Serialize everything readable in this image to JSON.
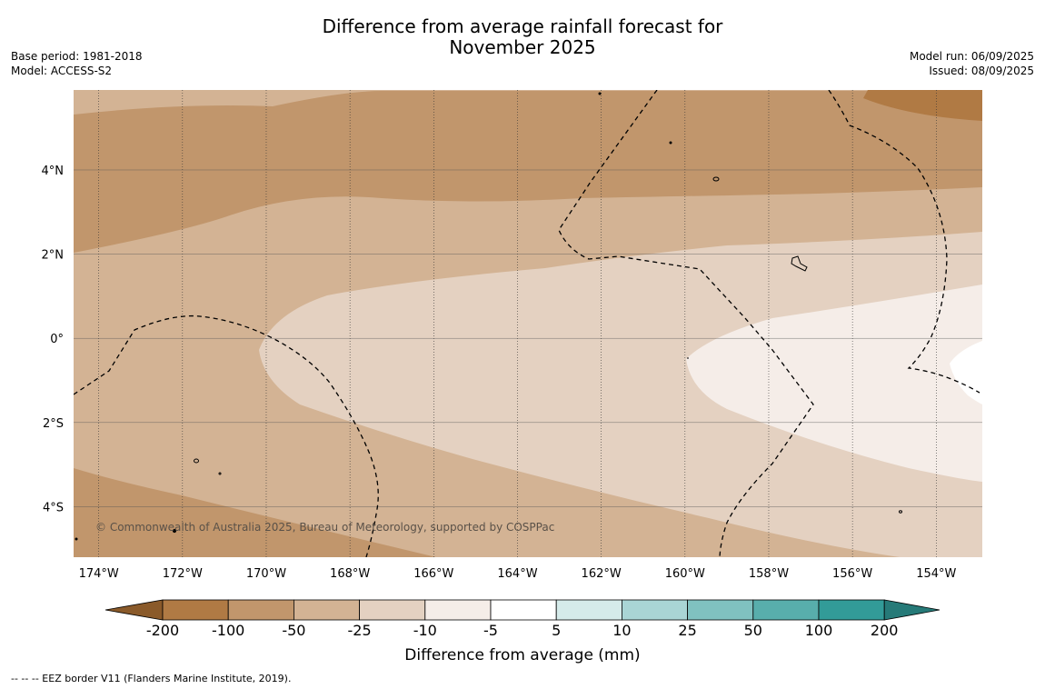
{
  "title": {
    "line1": "Difference from average rainfall forecast for",
    "line2": "November 2025"
  },
  "meta_left": {
    "base_period": "Base period: 1981-2018",
    "model": "Model: ACCESS-S2"
  },
  "meta_right": {
    "model_run": "Model run: 06/09/2025",
    "issued": "Issued: 08/09/2025"
  },
  "map": {
    "lon_range": [
      -174.6,
      -152.9
    ],
    "lat_range": [
      -5.2,
      5.9
    ],
    "lon_ticks": [
      -174,
      -172,
      -170,
      -168,
      -166,
      -164,
      -162,
      -160,
      -158,
      -156,
      -154
    ],
    "lon_tick_labels": [
      "174°W",
      "172°W",
      "170°W",
      "168°W",
      "166°W",
      "164°W",
      "162°W",
      "160°W",
      "158°W",
      "156°W",
      "154°W"
    ],
    "lat_ticks": [
      4,
      2,
      0,
      -2,
      -4
    ],
    "lat_tick_labels": [
      "4°N",
      "2°N",
      "0°",
      "2°S",
      "4°S"
    ],
    "copyright": "© Commonwealth of Australia 2025, Bureau of Meteorology, supported by COSPPac"
  },
  "colorbar": {
    "title": "Difference from average (mm)",
    "tick_labels": [
      "-200",
      "-100",
      "-50",
      "-25",
      "-10",
      "-5",
      "5",
      "10",
      "25",
      "50",
      "100",
      "200"
    ],
    "colors": {
      "under": "#8a5a2a",
      "bins": [
        "#b07a44",
        "#c1966c",
        "#d3b394",
        "#e4d1c1",
        "#f5ede8",
        "#ffffff",
        "#d5ebea",
        "#a9d5d5",
        "#80c1c0",
        "#58aeac",
        "#329b98"
      ],
      "over": "#267a78"
    }
  },
  "footer": "--  --  -- EEZ border V11 (Flanders Marine Institute, 2019)."
}
